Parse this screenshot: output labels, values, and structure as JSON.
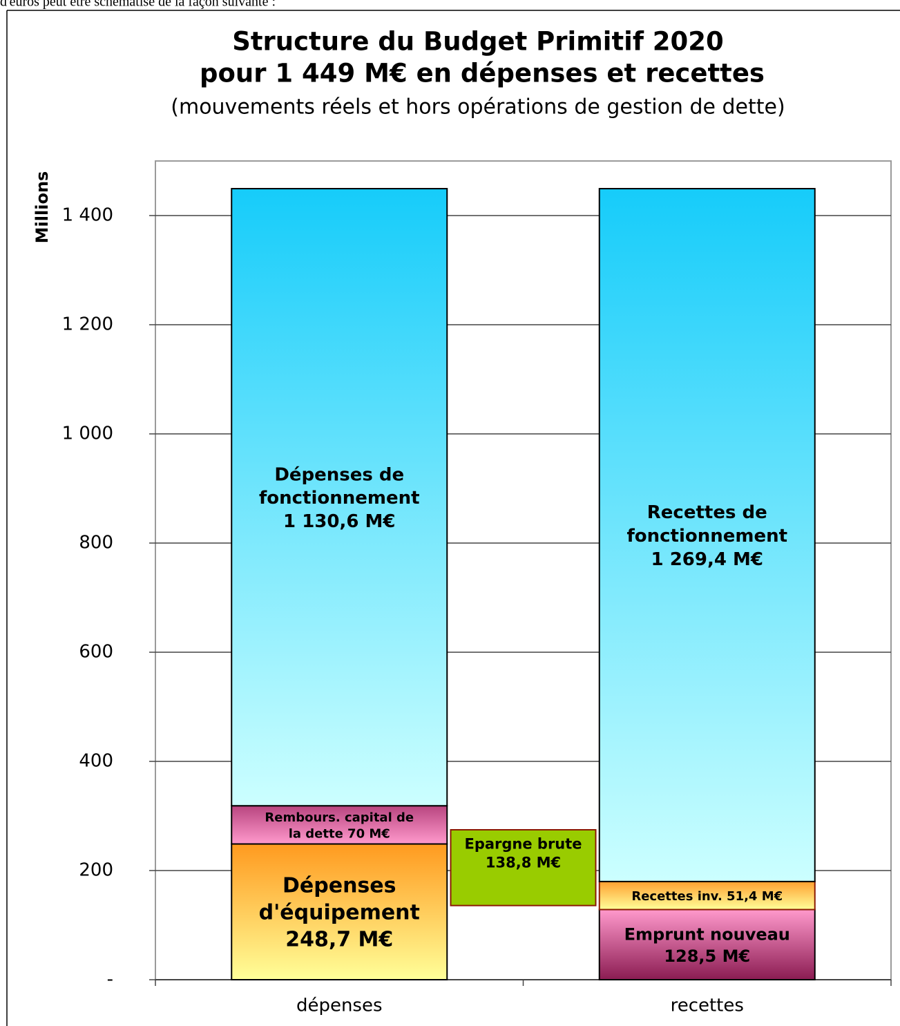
{
  "intro_text": "d'euros peut être schématisé de la façon suivante :",
  "chart_data": {
    "type": "stacked_bar",
    "title": [
      "Structure du Budget Primitif 2020",
      "pour 1 449 M€ en dépenses et recettes"
    ],
    "subtitle": "(mouvements réels et hors opérations de gestion de dette)",
    "y_label": "Millions",
    "categories": [
      "dépenses",
      "recettes"
    ],
    "ylim": [
      0,
      1500
    ],
    "yticks": [
      {
        "value": 0,
        "label": "-"
      },
      200,
      400,
      600,
      800,
      {
        "value": 1000,
        "label": "1 000"
      },
      {
        "value": 1200,
        "label": "1 200"
      },
      {
        "value": 1400,
        "label": "1 400"
      }
    ],
    "grid": true,
    "stacks": [
      {
        "segments": [
          {
            "label_lines": [
              "Dépenses",
              "d'équipement",
              "248,7 M€"
            ],
            "value": 248.7,
            "colors": [
              "#ff9a1f",
              "#ffff99"
            ],
            "stroke": "#000000"
          },
          {
            "label_lines": [
              "Rembours. capital de",
              "la dette 70 M€"
            ],
            "value": 70,
            "colors": [
              "#b8457f",
              "#ff99cc"
            ],
            "stroke": "#000000"
          },
          {
            "label_lines": [
              "Dépenses de",
              "fonctionnement",
              "1 130,6 M€"
            ],
            "value": 1130.6,
            "colors": [
              "#16ccfa",
              "#ccffff"
            ],
            "stroke": "#000000"
          }
        ]
      },
      {
        "segments": [
          {
            "label_lines": [
              "Emprunt nouveau",
              "128,5 M€"
            ],
            "value": 128.5,
            "colors": [
              "#ff99cc",
              "#8b1c52"
            ],
            "stroke": "#000000"
          },
          {
            "label_lines": [
              "Recettes inv. 51,4 M€"
            ],
            "value": 51.4,
            "colors": [
              "#ffa030",
              "#ffff99"
            ],
            "stroke": "#8b1a00"
          },
          {
            "label_lines": [
              "Recettes de",
              "fonctionnement",
              "1 269,4 M€"
            ],
            "value": 1269.4,
            "colors": [
              "#16ccfa",
              "#ccffff"
            ],
            "stroke": "#000000"
          }
        ]
      }
    ],
    "floating_bar": {
      "label_lines": [
        "Epargne brute",
        "138,8 M€"
      ],
      "value": 138.8,
      "color": "#99cc00",
      "stroke": "#8b1a00"
    }
  }
}
